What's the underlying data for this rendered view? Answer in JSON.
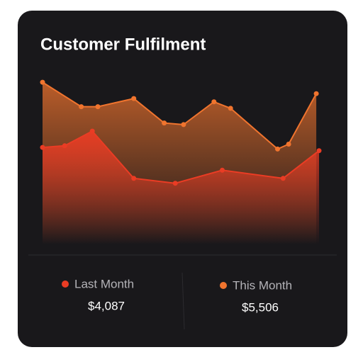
{
  "chart_data": {
    "type": "area",
    "title": "Customer Fulfilment",
    "xlim": [
      0,
      100
    ],
    "ylim": [
      0,
      100
    ],
    "series": [
      {
        "name": "This Month",
        "color": "#f0742e",
        "total": "$5,506",
        "x": [
          0,
          14,
          20,
          33,
          44,
          51,
          62,
          68,
          85,
          89,
          99
        ],
        "values": [
          93,
          78,
          78,
          83,
          68,
          67,
          81,
          77,
          52,
          55,
          86
        ]
      },
      {
        "name": "Last Month",
        "color": "#ea3c24",
        "total": "$4,087",
        "x": [
          0,
          8,
          18,
          33,
          48,
          65,
          87,
          100
        ],
        "values": [
          53,
          54,
          63,
          34,
          31,
          39,
          34,
          51
        ]
      }
    ]
  }
}
